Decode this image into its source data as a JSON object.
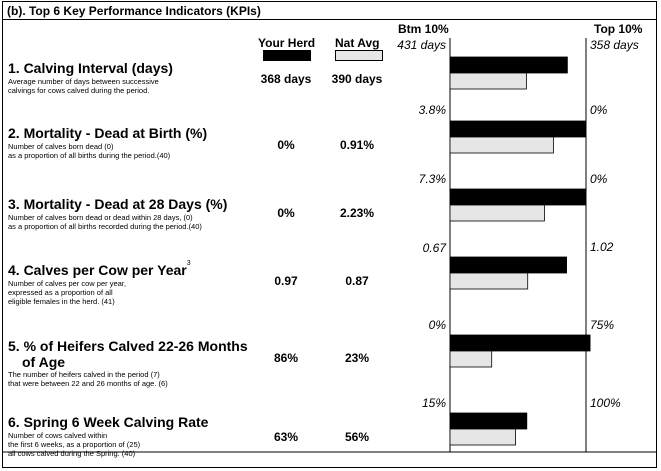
{
  "section_title": "(b). Top 6 Key Performance Indicators (KPIs)",
  "headers": {
    "your_herd": "Your Herd",
    "nat_avg": "Nat Avg",
    "btm": "Btm 10%",
    "top": "Top 10%"
  },
  "colors": {
    "your_herd": "#000000",
    "nat_avg": "#e6e6e6"
  },
  "kpis": [
    {
      "title": "1. Calving Interval (days)",
      "title_line2": "",
      "superscript": "",
      "description": "Average number of days between successive\ncalvings for cows calved during the period.",
      "desc_counts": "",
      "your_herd": "368 days",
      "nat_avg": "390 days",
      "btm_label": "431 days",
      "top_label": "358 days"
    },
    {
      "title": "2. Mortality - Dead at Birth (%)",
      "title_line2": "",
      "superscript": "",
      "description": "Number of calves born dead (0)\nas a proportion of all births during the period.(40)",
      "your_herd": "0%",
      "nat_avg": "0.91%",
      "btm_label": "3.8%",
      "top_label": "0%"
    },
    {
      "title": "3. Mortality - Dead at 28 Days (%)",
      "title_line2": "",
      "superscript": "",
      "description": "Number of calves born dead or dead within 28 days, (0)\nas a proportion of all births recorded during the period.(40)",
      "your_herd": "0%",
      "nat_avg": "2.23%",
      "btm_label": "7.3%",
      "top_label": "0%"
    },
    {
      "title": "4. Calves per Cow per Year",
      "title_line2": "",
      "superscript": "3",
      "description": "Number of calves per cow per year,\nexpressed as a proportion of all\neligible females in the herd. (41)",
      "your_herd": "0.97",
      "nat_avg": "0.87",
      "btm_label": "0.67",
      "top_label": "1.02"
    },
    {
      "title": "5. % of Heifers Calved 22-26 Months",
      "title_line2": "of Age",
      "superscript": "",
      "description": "The number of heifers calved in the period  (7)\nthat were between 22 and 26 months of age. (6)",
      "your_herd": "86%",
      "nat_avg": "23%",
      "btm_label": "0%",
      "top_label": "75%"
    },
    {
      "title": "6. Spring 6 Week Calving Rate",
      "title_line2": "",
      "superscript": "",
      "description": "Number of cows calved within\nthe first 6 weeks, as a proportion of  (25)\nall cows calved during the Spring.   (40)",
      "your_herd": "63%",
      "nat_avg": "56%",
      "btm_label": "15%",
      "top_label": "100%"
    }
  ],
  "chart_data": {
    "type": "bar",
    "orientation": "horizontal",
    "categories": [
      "Calving Interval",
      "Mortality - Dead at Birth",
      "Mortality - Dead at 28 Days",
      "Calves per Cow per Year",
      "% of Heifers Calved 22-26 Months of Age",
      "Spring 6 Week Calving Rate"
    ],
    "series": [
      {
        "name": "Your Herd",
        "values": [
          368,
          0,
          0,
          0.97,
          86,
          63
        ]
      },
      {
        "name": "Nat Avg",
        "values": [
          390,
          0.91,
          2.23,
          0.87,
          23,
          56
        ]
      }
    ],
    "btm_10": [
      431,
      3.8,
      7.3,
      0.67,
      0,
      15
    ],
    "top_10": [
      358,
      0,
      0,
      1.02,
      75,
      100
    ]
  }
}
